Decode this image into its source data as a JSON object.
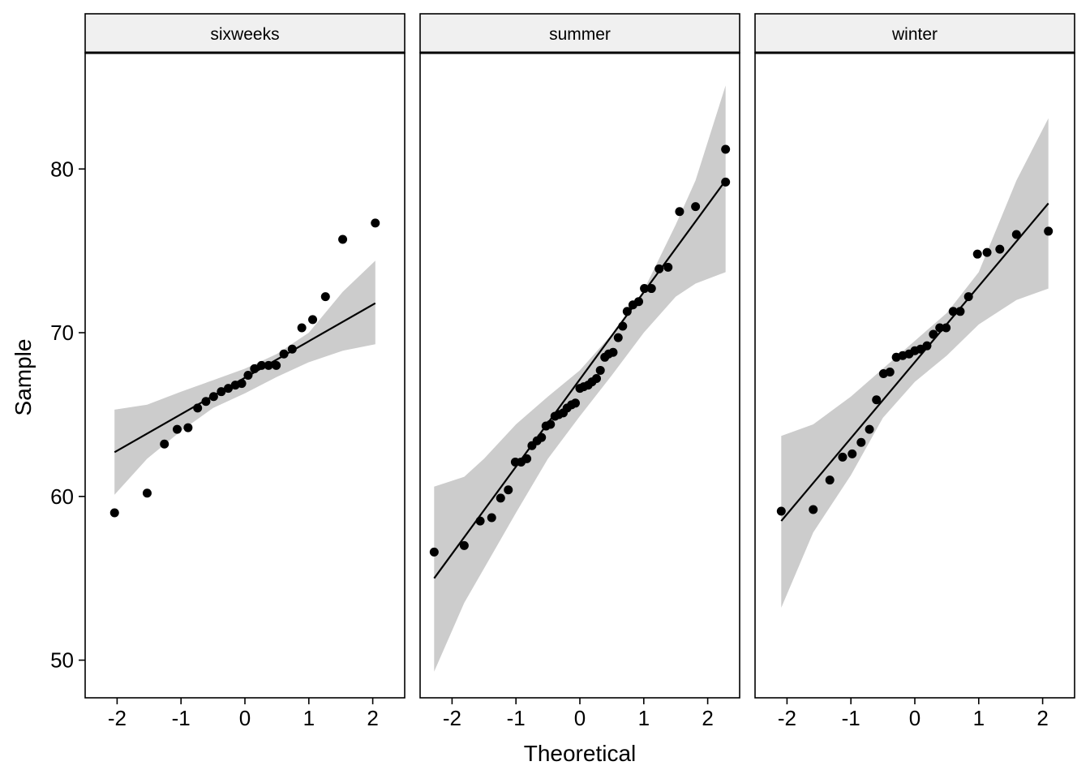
{
  "chart_data": {
    "type": "scatter",
    "subtype": "qq-plot-faceted",
    "xlabel": "Theoretical",
    "ylabel": "Sample",
    "xlim": [
      -2.5,
      2.5
    ],
    "ylim": [
      47.7,
      87.1
    ],
    "xticks": [
      -2,
      -1,
      0,
      1,
      2
    ],
    "yticks": [
      50,
      60,
      70,
      80
    ],
    "grid": false,
    "colors": {
      "points": "#000000",
      "line": "#000000",
      "band": "#cccccc",
      "strip_bg": "#f0f0f0",
      "border": "#000000"
    },
    "panels": [
      {
        "name": "sixweeks",
        "points": [
          [
            -2.04,
            59.0
          ],
          [
            -1.53,
            60.2
          ],
          [
            -1.26,
            63.2
          ],
          [
            -1.06,
            64.1
          ],
          [
            -0.89,
            64.2
          ],
          [
            -0.74,
            65.4
          ],
          [
            -0.61,
            65.8
          ],
          [
            -0.49,
            66.1
          ],
          [
            -0.37,
            66.4
          ],
          [
            -0.26,
            66.6
          ],
          [
            -0.15,
            66.8
          ],
          [
            -0.05,
            66.9
          ],
          [
            0.05,
            67.4
          ],
          [
            0.15,
            67.8
          ],
          [
            0.26,
            68.0
          ],
          [
            0.37,
            68.0
          ],
          [
            0.49,
            68.0
          ],
          [
            0.61,
            68.7
          ],
          [
            0.74,
            69.0
          ],
          [
            0.89,
            70.3
          ],
          [
            1.06,
            70.8
          ],
          [
            1.26,
            72.2
          ],
          [
            1.53,
            75.7
          ],
          [
            2.04,
            76.7
          ]
        ],
        "line": [
          [
            -2.04,
            62.7
          ],
          [
            2.04,
            71.8
          ]
        ],
        "band": {
          "x": [
            -2.04,
            -1.53,
            -1.0,
            -0.5,
            0.0,
            0.5,
            1.0,
            1.53,
            2.04
          ],
          "upper": [
            65.3,
            65.6,
            66.4,
            67.1,
            67.8,
            68.7,
            70.0,
            72.5,
            74.4
          ],
          "lower": [
            60.1,
            62.3,
            64.0,
            65.4,
            66.3,
            67.3,
            68.2,
            68.9,
            69.3
          ]
        }
      },
      {
        "name": "summer",
        "points": [
          [
            -2.28,
            56.6
          ],
          [
            -1.81,
            57.0
          ],
          [
            -1.56,
            58.5
          ],
          [
            -1.38,
            58.7
          ],
          [
            -1.24,
            59.9
          ],
          [
            -1.12,
            60.4
          ],
          [
            -1.01,
            62.1
          ],
          [
            -0.92,
            62.1
          ],
          [
            -0.83,
            62.3
          ],
          [
            -0.75,
            63.1
          ],
          [
            -0.67,
            63.4
          ],
          [
            -0.6,
            63.6
          ],
          [
            -0.53,
            64.3
          ],
          [
            -0.46,
            64.4
          ],
          [
            -0.39,
            64.9
          ],
          [
            -0.33,
            65.0
          ],
          [
            -0.26,
            65.1
          ],
          [
            -0.2,
            65.4
          ],
          [
            -0.13,
            65.6
          ],
          [
            -0.07,
            65.7
          ],
          [
            0.0,
            66.6
          ],
          [
            0.06,
            66.7
          ],
          [
            0.13,
            66.8
          ],
          [
            0.19,
            67.0
          ],
          [
            0.26,
            67.2
          ],
          [
            0.32,
            67.7
          ],
          [
            0.39,
            68.5
          ],
          [
            0.45,
            68.7
          ],
          [
            0.52,
            68.8
          ],
          [
            0.6,
            69.7
          ],
          [
            0.67,
            70.4
          ],
          [
            0.74,
            71.3
          ],
          [
            0.83,
            71.7
          ],
          [
            0.92,
            71.9
          ],
          [
            1.01,
            72.7
          ],
          [
            1.12,
            72.7
          ],
          [
            1.24,
            73.9
          ],
          [
            1.38,
            74.0
          ],
          [
            1.56,
            77.4
          ],
          [
            1.81,
            77.7
          ],
          [
            2.28,
            79.2
          ],
          [
            2.28,
            81.2
          ]
        ],
        "line": [
          [
            -2.28,
            55.0
          ],
          [
            2.28,
            79.3
          ]
        ],
        "band": {
          "x": [
            -2.28,
            -1.81,
            -1.5,
            -1.0,
            -0.5,
            0.0,
            0.5,
            1.0,
            1.5,
            1.81,
            2.28
          ],
          "upper": [
            60.6,
            61.2,
            62.3,
            64.4,
            66.1,
            67.7,
            69.9,
            72.6,
            76.6,
            79.3,
            85.1
          ],
          "lower": [
            49.3,
            53.5,
            55.6,
            59.0,
            62.3,
            64.9,
            67.4,
            70.0,
            72.2,
            73.0,
            73.7
          ]
        }
      },
      {
        "name": "winter",
        "points": [
          [
            -2.09,
            59.1
          ],
          [
            -1.59,
            59.2
          ],
          [
            -1.33,
            61.0
          ],
          [
            -1.13,
            62.4
          ],
          [
            -0.98,
            62.6
          ],
          [
            -0.84,
            63.3
          ],
          [
            -0.71,
            64.1
          ],
          [
            -0.6,
            65.9
          ],
          [
            -0.49,
            67.5
          ],
          [
            -0.39,
            67.6
          ],
          [
            -0.29,
            68.5
          ],
          [
            -0.19,
            68.6
          ],
          [
            -0.09,
            68.7
          ],
          [
            0.0,
            68.9
          ],
          [
            0.09,
            69.0
          ],
          [
            0.19,
            69.2
          ],
          [
            0.29,
            69.9
          ],
          [
            0.39,
            70.3
          ],
          [
            0.49,
            70.3
          ],
          [
            0.6,
            71.3
          ],
          [
            0.71,
            71.3
          ],
          [
            0.84,
            72.2
          ],
          [
            0.98,
            74.8
          ],
          [
            1.13,
            74.9
          ],
          [
            1.33,
            75.1
          ],
          [
            1.59,
            76.0
          ],
          [
            2.09,
            76.2
          ]
        ],
        "line": [
          [
            -2.09,
            58.5
          ],
          [
            2.09,
            77.9
          ]
        ],
        "band": {
          "x": [
            -2.09,
            -1.59,
            -1.0,
            -0.5,
            0.0,
            0.5,
            1.0,
            1.59,
            2.09
          ],
          "upper": [
            63.7,
            64.4,
            66.1,
            67.8,
            69.5,
            71.2,
            73.7,
            79.3,
            83.1
          ],
          "lower": [
            53.2,
            57.8,
            61.3,
            64.8,
            67.0,
            68.6,
            70.5,
            72.0,
            72.7
          ]
        }
      }
    ]
  }
}
